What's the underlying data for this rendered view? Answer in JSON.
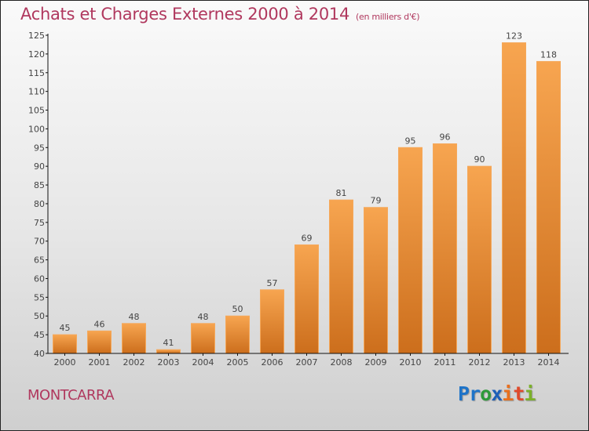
{
  "title": "Achats et Charges Externes 2000 à 2014",
  "subtitle": "(en milliers d'€)",
  "town": "MONTCARRA",
  "logo": {
    "letters": [
      {
        "char": "P",
        "color": "#1e73c8"
      },
      {
        "char": "r",
        "color": "#1e73c8"
      },
      {
        "char": "o",
        "color": "#2e9a3a"
      },
      {
        "char": "x",
        "color": "#1e5fb8"
      },
      {
        "char": "i",
        "color": "#e8701e"
      },
      {
        "char": "t",
        "color": "#e04a2a"
      },
      {
        "char": "i",
        "color": "#7bb02a"
      }
    ]
  },
  "colors": {
    "title": "#b0385e",
    "bar_top": "#f7a550",
    "bar_bottom": "#cc6e1c",
    "axis": "#111111"
  },
  "chart_data": {
    "type": "bar",
    "title": "Achats et Charges Externes 2000 à 2014 (en milliers d'€)",
    "xlabel": "",
    "ylabel": "",
    "categories": [
      "2000",
      "2001",
      "2002",
      "2003",
      "2004",
      "2005",
      "2006",
      "2007",
      "2008",
      "2009",
      "2010",
      "2011",
      "2012",
      "2013",
      "2014"
    ],
    "values": [
      45,
      46,
      48,
      41,
      48,
      50,
      57,
      69,
      81,
      79,
      95,
      96,
      90,
      123,
      118
    ],
    "ylim": [
      40,
      125
    ],
    "yticks": [
      40,
      45,
      50,
      55,
      60,
      65,
      70,
      75,
      80,
      85,
      90,
      95,
      100,
      105,
      110,
      115,
      120,
      125
    ],
    "grid": false,
    "legend": "none"
  }
}
